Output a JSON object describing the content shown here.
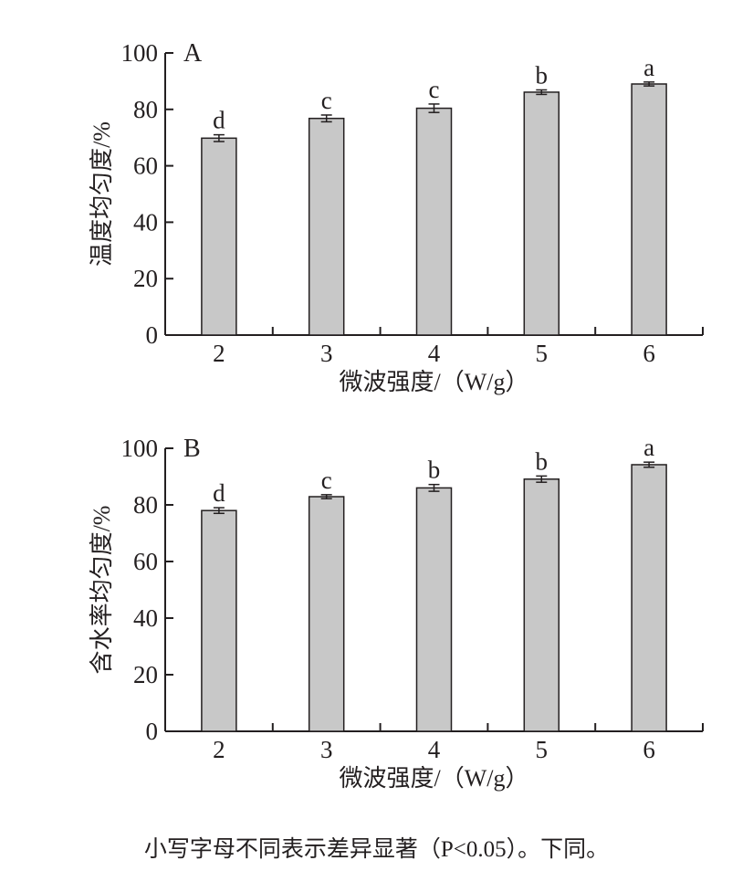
{
  "chart_data": [
    {
      "type": "bar",
      "panel_label": "A",
      "categories": [
        "2",
        "3",
        "4",
        "5",
        "6"
      ],
      "values": [
        69.8,
        76.8,
        80.4,
        86.1,
        89.0
      ],
      "errors": [
        1.2,
        1.2,
        1.5,
        0.8,
        0.7
      ],
      "significance": [
        "d",
        "c",
        "c",
        "b",
        "a"
      ],
      "xlabel": "微波强度/（W/g）",
      "ylabel": "温度均匀度/%",
      "ylim": [
        0,
        100
      ],
      "yticks": [
        "0",
        "20",
        "40",
        "60",
        "80",
        "100"
      ],
      "bar_color": "#c8c8c8",
      "grid": false
    },
    {
      "type": "bar",
      "panel_label": "B",
      "categories": [
        "2",
        "3",
        "4",
        "5",
        "6"
      ],
      "values": [
        78.0,
        82.9,
        86.0,
        89.1,
        94.2
      ],
      "errors": [
        1.0,
        0.7,
        1.2,
        1.1,
        0.9
      ],
      "significance": [
        "d",
        "c",
        "b",
        "b",
        "a"
      ],
      "xlabel": "微波强度/（W/g）",
      "ylabel": "含水率均匀度/%",
      "ylim": [
        0,
        100
      ],
      "yticks": [
        "0",
        "20",
        "40",
        "60",
        "80",
        "100"
      ],
      "bar_color": "#c8c8c8",
      "grid": false
    }
  ],
  "caption": "小写字母不同表示差异显著（P<0.05）。下同。"
}
